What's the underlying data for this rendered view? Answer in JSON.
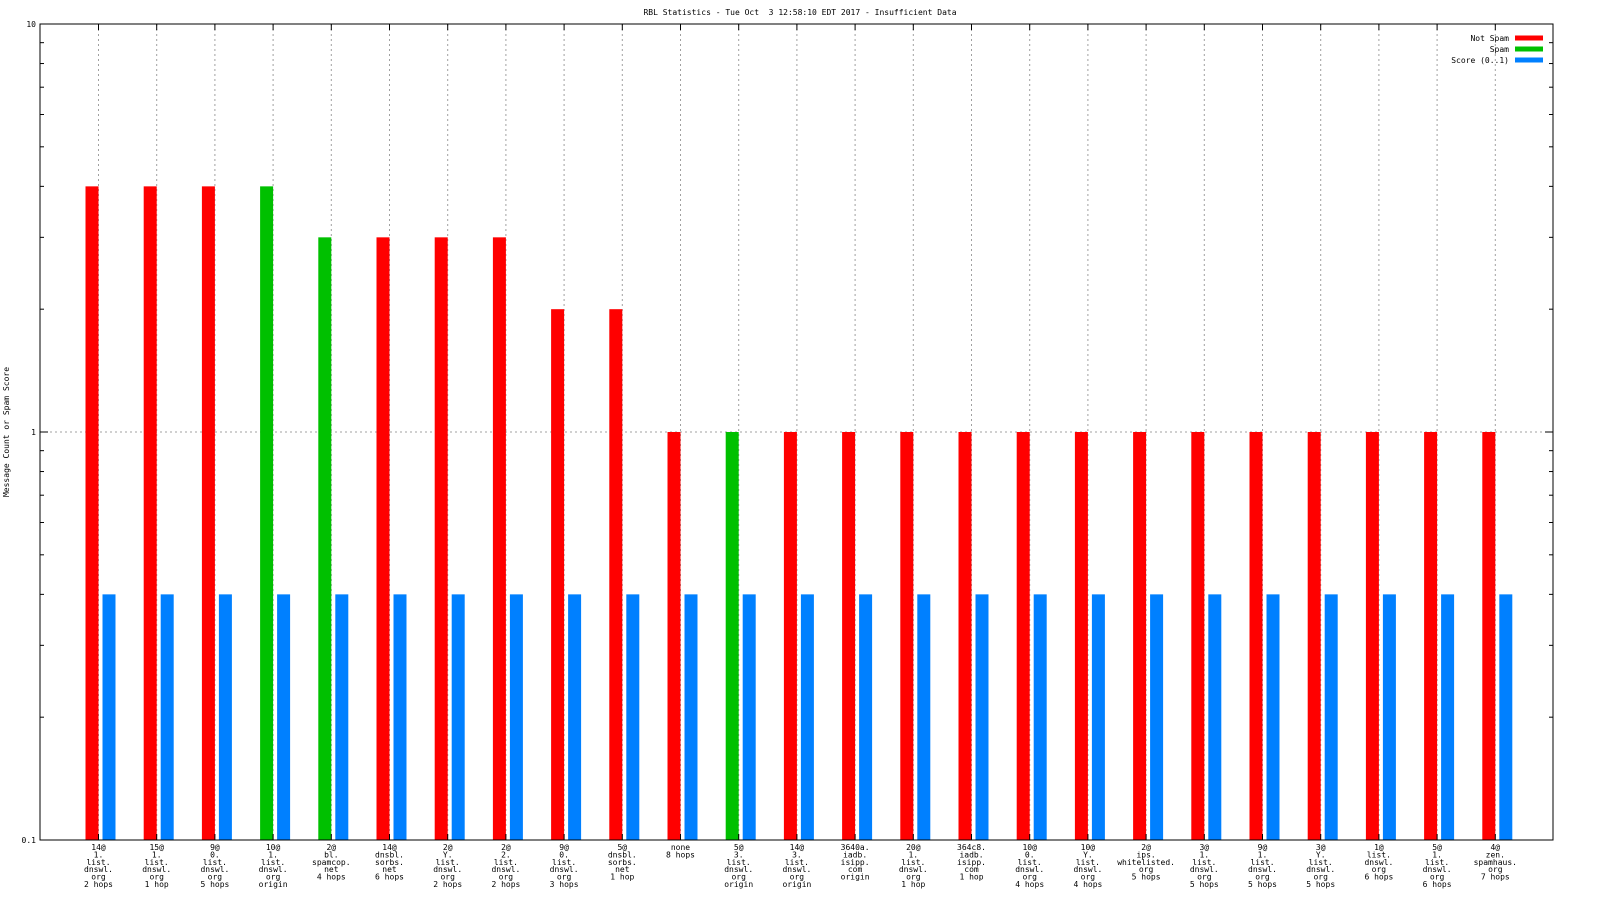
{
  "chart_data": {
    "type": "bar",
    "title": "RBL Statistics - Tue Oct  3 12:58:10 EDT 2017 - Insufficient Data",
    "ylabel": "Message Count or Spam Score",
    "xlabel": "",
    "yscale": "log",
    "ylim": [
      0.1,
      10
    ],
    "yticks": [
      "0.1",
      "1",
      "10"
    ],
    "grid": true,
    "legend_position": "top-right",
    "categories": [
      [
        "14@",
        "1.",
        "list.",
        "dnswl.",
        "org",
        "2 hops"
      ],
      [
        "15@",
        "1.",
        "list.",
        "dnswl.",
        "org",
        "1 hop"
      ],
      [
        "9@",
        "0.",
        "list.",
        "dnswl.",
        "org",
        "5 hops"
      ],
      [
        "10@",
        "1.",
        "list.",
        "dnswl.",
        "org",
        "origin"
      ],
      [
        "2@",
        "bl.",
        "spamcop.",
        "net",
        "4 hops"
      ],
      [
        "14@",
        "dnsbl.",
        "sorbs.",
        "net",
        "6 hops"
      ],
      [
        "2@",
        "Y.",
        "list.",
        "dnswl.",
        "org",
        "2 hops"
      ],
      [
        "2@",
        "2.",
        "list.",
        "dnswl.",
        "org",
        "2 hops"
      ],
      [
        "9@",
        "0.",
        "list.",
        "dnswl.",
        "org",
        "3 hops"
      ],
      [
        "5@",
        "dnsbl.",
        "sorbs.",
        "net",
        "1 hop"
      ],
      [
        "none",
        "8 hops"
      ],
      [
        "5@",
        "3.",
        "list.",
        "dnswl.",
        "org",
        "origin"
      ],
      [
        "14@",
        "3.",
        "list.",
        "dnswl.",
        "org",
        "origin"
      ],
      [
        "3640a.",
        "iadb.",
        "isipp.",
        "com",
        "origin"
      ],
      [
        "20@",
        "1.",
        "list.",
        "dnswl.",
        "org",
        "1 hop"
      ],
      [
        "364c8.",
        "iadb.",
        "isipp.",
        "com",
        "1 hop"
      ],
      [
        "10@",
        "0.",
        "list.",
        "dnswl.",
        "org",
        "4 hops"
      ],
      [
        "10@",
        "Y.",
        "list.",
        "dnswl.",
        "org",
        "4 hops"
      ],
      [
        "2@",
        "ips.",
        "whitelisted.",
        "org",
        "5 hops"
      ],
      [
        "3@",
        "1.",
        "list.",
        "dnswl.",
        "org",
        "5 hops"
      ],
      [
        "9@",
        "1.",
        "list.",
        "dnswl.",
        "org",
        "5 hops"
      ],
      [
        "3@",
        "Y.",
        "list.",
        "dnswl.",
        "org",
        "5 hops"
      ],
      [
        "1@",
        "list.",
        "dnswl.",
        "org",
        "6 hops"
      ],
      [
        "5@",
        "1.",
        "list.",
        "dnswl.",
        "org",
        "6 hops"
      ],
      [
        "4@",
        "zen.",
        "spamhaus.",
        "org",
        "7 hops"
      ]
    ],
    "series": [
      {
        "name": "Not Spam",
        "color": "#ff0000",
        "values": [
          4,
          4,
          4,
          0,
          0,
          3,
          3,
          3,
          2,
          2,
          1,
          0,
          1,
          1,
          1,
          1,
          1,
          1,
          1,
          1,
          1,
          1,
          1,
          1,
          1
        ]
      },
      {
        "name": "Spam",
        "color": "#00c000",
        "values": [
          0,
          0,
          0,
          4,
          3,
          0,
          0,
          0,
          0,
          0,
          0,
          1,
          0,
          0,
          0,
          0,
          0,
          0,
          0,
          0,
          0,
          0,
          0,
          0,
          0
        ]
      },
      {
        "name": "Score (0..1)",
        "color": "#0080ff",
        "values": [
          0.4,
          0.4,
          0.4,
          0.4,
          0.4,
          0.4,
          0.4,
          0.4,
          0.4,
          0.4,
          0.4,
          0.4,
          0.4,
          0.4,
          0.4,
          0.4,
          0.4,
          0.4,
          0.4,
          0.4,
          0.4,
          0.4,
          0.4,
          0.4,
          0.4
        ]
      }
    ]
  }
}
